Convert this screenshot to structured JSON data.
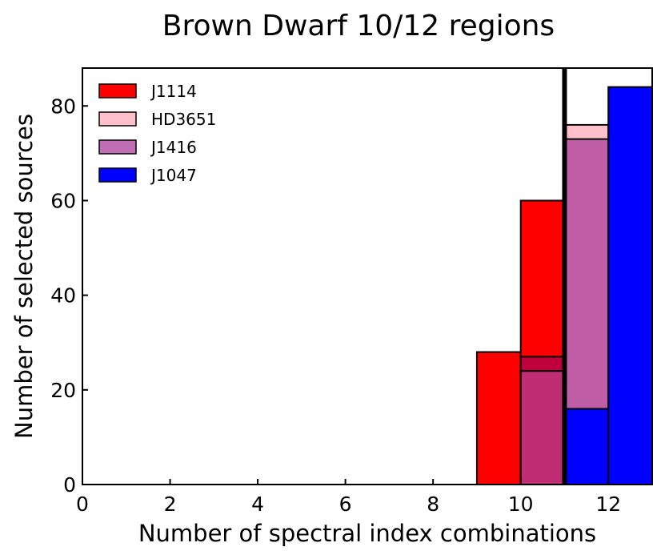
{
  "chart_data": {
    "type": "bar",
    "title": "Brown Dwarf 10/12 regions",
    "xlabel": "Number of spectral index combinations",
    "ylabel": "Number of selected sources",
    "xlim": [
      0,
      13
    ],
    "ylim": [
      0,
      88
    ],
    "x_ticks": [
      0,
      2,
      4,
      6,
      8,
      10,
      12
    ],
    "y_ticks": [
      0,
      20,
      40,
      60,
      80
    ],
    "x_tick_labels": [
      "0",
      "2",
      "4",
      "6",
      "8",
      "10",
      "12"
    ],
    "y_tick_labels": [
      "0",
      "20",
      "40",
      "60",
      "80"
    ],
    "bin_width": 1,
    "vertical_line_x": 11,
    "legend_position": "upper-left",
    "grid": false,
    "series": [
      {
        "name": "J1114",
        "color": "#ff0000",
        "opacity": 1.0,
        "bins": [
          9,
          10
        ],
        "values": [
          28,
          60
        ]
      },
      {
        "name": "HD3651",
        "color": "#ffc0cb",
        "opacity": 1.0,
        "bins": [
          11
        ],
        "values": [
          76
        ]
      },
      {
        "name": "J1416",
        "color": "#aa3d99",
        "opacity": 0.75,
        "bins": [
          10,
          11
        ],
        "values": [
          24,
          73
        ]
      },
      {
        "name": "J1047",
        "color": "#0000ff",
        "opacity": 1.0,
        "bins": [
          11,
          12
        ],
        "values": [
          16,
          84
        ]
      }
    ],
    "overlap_segments": [
      {
        "bin": 10,
        "from": 24,
        "to": 27,
        "color": "#c0003c"
      }
    ]
  }
}
